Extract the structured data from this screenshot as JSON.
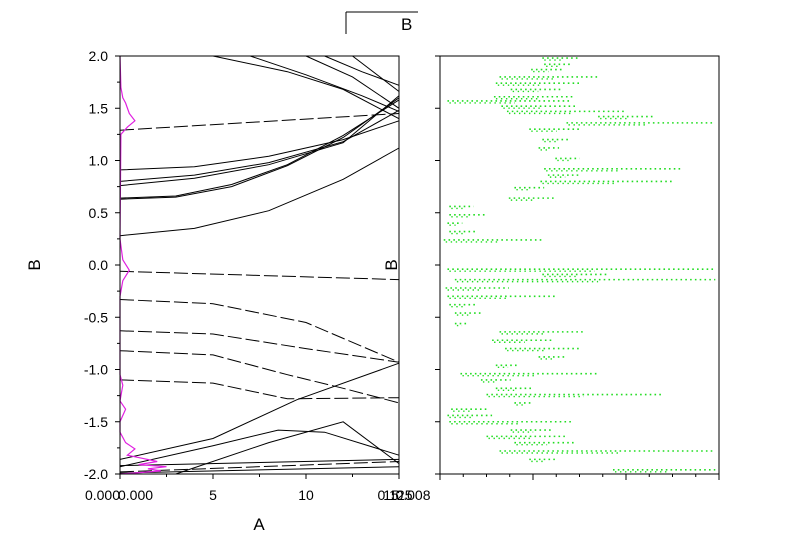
{
  "legend": {
    "label": "B"
  },
  "chart_data": [
    {
      "panel": "left",
      "type": "line",
      "title": "",
      "xlabel": "A",
      "ylabel": "B",
      "xlim": [
        0,
        15
      ],
      "ylim": [
        -2.0,
        2.0
      ],
      "x_ticks": [
        "0.000",
        "5",
        "10",
        "15"
      ],
      "x_overlay_ticks": [
        "0.000",
        "0.125",
        "0.008"
      ],
      "y_ticks": [
        "2.0",
        "1.5",
        "1.0",
        "0.5",
        "0.0",
        "-0.5",
        "-1.0",
        "-1.5",
        "-2.0"
      ],
      "y_tick_values": [
        2.0,
        1.5,
        1.0,
        0.5,
        0.0,
        -0.5,
        -1.0,
        -1.5,
        -2.0
      ],
      "line_color": "#000000",
      "series": [
        {
          "style": "dash",
          "points": [
            [
              0,
              1.29
            ],
            [
              15,
              1.45
            ]
          ]
        },
        {
          "style": "solid",
          "points": [
            [
              0,
              0.91
            ],
            [
              4,
              0.94
            ],
            [
              8,
              1.04
            ],
            [
              12,
              1.2
            ],
            [
              15,
              1.38
            ]
          ]
        },
        {
          "style": "solid",
          "points": [
            [
              0,
              0.8
            ],
            [
              4,
              0.86
            ],
            [
              8,
              0.98
            ],
            [
              12,
              1.18
            ],
            [
              15,
              1.48
            ]
          ]
        },
        {
          "style": "solid",
          "points": [
            [
              0,
              0.76
            ],
            [
              4,
              0.83
            ],
            [
              8,
              0.96
            ],
            [
              12,
              1.17
            ],
            [
              15,
              1.62
            ]
          ]
        },
        {
          "style": "solid",
          "points": [
            [
              0,
              0.64
            ],
            [
              3,
              0.66
            ],
            [
              6,
              0.77
            ],
            [
              9,
              0.96
            ],
            [
              12,
              1.24
            ],
            [
              15,
              1.58
            ]
          ]
        },
        {
          "style": "solid",
          "points": [
            [
              0,
              0.63
            ],
            [
              3,
              0.65
            ],
            [
              6,
              0.75
            ],
            [
              9,
              0.95
            ],
            [
              12,
              1.22
            ],
            [
              15,
              1.6
            ]
          ]
        },
        {
          "style": "solid",
          "points": [
            [
              0,
              0.28
            ],
            [
              4,
              0.35
            ],
            [
              8,
              0.52
            ],
            [
              12,
              0.82
            ],
            [
              15,
              1.12
            ]
          ]
        },
        {
          "style": "solid",
          "points": [
            [
              5,
              2.0
            ],
            [
              9,
              1.85
            ],
            [
              12,
              1.68
            ],
            [
              15,
              1.4
            ]
          ]
        },
        {
          "style": "solid",
          "points": [
            [
              7,
              2.0
            ],
            [
              10,
              1.82
            ],
            [
              13,
              1.62
            ],
            [
              15,
              1.47
            ]
          ]
        },
        {
          "style": "solid",
          "points": [
            [
              10,
              2.0
            ],
            [
              12.5,
              1.8
            ],
            [
              15,
              1.5
            ]
          ]
        },
        {
          "style": "solid",
          "points": [
            [
              11,
              2.0
            ],
            [
              13,
              1.85
            ],
            [
              15,
              1.72
            ]
          ]
        },
        {
          "style": "solid",
          "points": [
            [
              12.5,
              2.0
            ],
            [
              15,
              1.66
            ]
          ]
        },
        {
          "style": "dash",
          "points": [
            [
              0,
              -0.06
            ],
            [
              15,
              -0.14
            ]
          ]
        },
        {
          "style": "dash",
          "points": [
            [
              0,
              -0.33
            ],
            [
              5,
              -0.37
            ],
            [
              10,
              -0.55
            ],
            [
              15,
              -0.93
            ]
          ]
        },
        {
          "style": "dash",
          "points": [
            [
              0,
              -0.63
            ],
            [
              5,
              -0.66
            ],
            [
              10,
              -0.8
            ],
            [
              15,
              -0.93
            ]
          ]
        },
        {
          "style": "dash",
          "points": [
            [
              0,
              -0.82
            ],
            [
              5,
              -0.86
            ],
            [
              9,
              -1.05
            ],
            [
              12,
              -1.18
            ],
            [
              15,
              -1.32
            ]
          ]
        },
        {
          "style": "dash",
          "points": [
            [
              0,
              -1.1
            ],
            [
              5,
              -1.13
            ],
            [
              9,
              -1.28
            ],
            [
              15,
              -1.27
            ]
          ]
        },
        {
          "style": "solid",
          "points": [
            [
              0,
              -1.86
            ],
            [
              5,
              -1.66
            ],
            [
              9.5,
              -1.29
            ],
            [
              15,
              -0.94
            ]
          ]
        },
        {
          "style": "solid",
          "points": [
            [
              0,
              -1.93
            ],
            [
              5,
              -1.73
            ],
            [
              8.5,
              -1.58
            ],
            [
              11,
              -1.6
            ],
            [
              15,
              -1.82
            ]
          ]
        },
        {
          "style": "solid",
          "points": [
            [
              3,
              -2.0
            ],
            [
              8,
              -1.7
            ],
            [
              12,
              -1.5
            ],
            [
              15,
              -1.9
            ]
          ]
        },
        {
          "style": "solid",
          "points": [
            [
              0,
              -1.92
            ],
            [
              15,
              -1.86
            ]
          ]
        },
        {
          "style": "dash",
          "points": [
            [
              0,
              -1.98
            ],
            [
              15,
              -1.88
            ]
          ]
        },
        {
          "style": "solid",
          "points": [
            [
              0,
              -1.99
            ],
            [
              15,
              -1.93
            ]
          ]
        }
      ],
      "dos_color": "#e020e0",
      "dos_curve": [
        [
          0,
          2.0
        ],
        [
          0.05,
          1.7
        ],
        [
          0.15,
          1.6
        ],
        [
          0.3,
          1.55
        ],
        [
          0.5,
          1.45
        ],
        [
          0.8,
          1.38
        ],
        [
          0.4,
          1.32
        ],
        [
          0.05,
          1.25
        ],
        [
          0,
          0.25
        ],
        [
          0.15,
          0.05
        ],
        [
          0.5,
          -0.05
        ],
        [
          0.15,
          -0.15
        ],
        [
          0,
          -0.3
        ],
        [
          0,
          -1.05
        ],
        [
          0.15,
          -1.15
        ],
        [
          0,
          -1.3
        ],
        [
          0.3,
          -1.38
        ],
        [
          0,
          -1.5
        ],
        [
          0,
          -1.6
        ],
        [
          0.3,
          -1.7
        ],
        [
          0.8,
          -1.76
        ],
        [
          0.4,
          -1.82
        ],
        [
          1.2,
          -1.85
        ],
        [
          2.0,
          -1.88
        ],
        [
          1.0,
          -1.91
        ],
        [
          2.5,
          -1.93
        ],
        [
          1.5,
          -1.95
        ],
        [
          2.2,
          -1.97
        ],
        [
          0.8,
          -1.99
        ],
        [
          0,
          -2.0
        ]
      ]
    },
    {
      "panel": "right",
      "type": "scatter",
      "ylabel": "B",
      "xlim": [
        0,
        1.5
      ],
      "ylim": [
        -2.0,
        2.0
      ],
      "x_minor_ticks": 12,
      "x_major_ticks": 3,
      "color": "#22dd22",
      "rows": [
        {
          "y": 1.98,
          "x0": 0.55,
          "x1": 0.74
        },
        {
          "y": 1.92,
          "x0": 0.56,
          "x1": 0.7
        },
        {
          "y": 1.87,
          "x0": 0.49,
          "x1": 0.66
        },
        {
          "y": 1.8,
          "x0": 0.32,
          "x1": 0.85
        },
        {
          "y": 1.74,
          "x0": 0.3,
          "x1": 0.75
        },
        {
          "y": 1.68,
          "x0": 0.38,
          "x1": 0.65
        },
        {
          "y": 1.61,
          "x0": 0.29,
          "x1": 0.72
        },
        {
          "y": 1.57,
          "x0": 0.04,
          "x1": 0.7
        },
        {
          "y": 1.52,
          "x0": 0.33,
          "x1": 0.73
        },
        {
          "y": 1.47,
          "x0": 0.36,
          "x1": 1.0
        },
        {
          "y": 1.42,
          "x0": 0.85,
          "x1": 1.15
        },
        {
          "y": 1.36,
          "x0": 0.68,
          "x1": 1.48
        },
        {
          "y": 1.3,
          "x0": 0.48,
          "x1": 0.75
        },
        {
          "y": 1.2,
          "x0": 0.55,
          "x1": 0.7
        },
        {
          "y": 1.12,
          "x0": 0.53,
          "x1": 0.64
        },
        {
          "y": 1.02,
          "x0": 0.62,
          "x1": 0.75
        },
        {
          "y": 0.92,
          "x0": 0.56,
          "x1": 1.3
        },
        {
          "y": 0.86,
          "x0": 0.58,
          "x1": 0.75
        },
        {
          "y": 0.8,
          "x0": 0.54,
          "x1": 1.26
        },
        {
          "y": 0.74,
          "x0": 0.4,
          "x1": 0.56
        },
        {
          "y": 0.64,
          "x0": 0.37,
          "x1": 0.62
        },
        {
          "y": 0.56,
          "x0": 0.05,
          "x1": 0.18
        },
        {
          "y": 0.48,
          "x0": 0.05,
          "x1": 0.25
        },
        {
          "y": 0.4,
          "x0": 0.04,
          "x1": 0.12
        },
        {
          "y": 0.32,
          "x0": 0.05,
          "x1": 0.2
        },
        {
          "y": 0.24,
          "x0": 0.02,
          "x1": 0.55
        },
        {
          "y": -0.04,
          "x0": 0.04,
          "x1": 1.48
        },
        {
          "y": -0.09,
          "x0": 0.55,
          "x1": 0.9
        },
        {
          "y": -0.14,
          "x0": 0.08,
          "x1": 1.48
        },
        {
          "y": -0.22,
          "x0": 0.03,
          "x1": 0.37
        },
        {
          "y": -0.3,
          "x0": 0.04,
          "x1": 0.62
        },
        {
          "y": -0.38,
          "x0": 0.05,
          "x1": 0.2
        },
        {
          "y": -0.46,
          "x0": 0.08,
          "x1": 0.22
        },
        {
          "y": -0.56,
          "x0": 0.08,
          "x1": 0.15
        },
        {
          "y": -0.64,
          "x0": 0.32,
          "x1": 0.77
        },
        {
          "y": -0.72,
          "x0": 0.28,
          "x1": 0.6
        },
        {
          "y": -0.8,
          "x0": 0.35,
          "x1": 0.75
        },
        {
          "y": -0.88,
          "x0": 0.53,
          "x1": 0.68
        },
        {
          "y": -0.96,
          "x0": 0.3,
          "x1": 0.42
        },
        {
          "y": -1.04,
          "x0": 0.11,
          "x1": 0.85
        },
        {
          "y": -1.1,
          "x0": 0.22,
          "x1": 0.38
        },
        {
          "y": -1.18,
          "x0": 0.3,
          "x1": 0.5
        },
        {
          "y": -1.24,
          "x0": 0.25,
          "x1": 1.2
        },
        {
          "y": -1.32,
          "x0": 0.4,
          "x1": 0.5
        },
        {
          "y": -1.38,
          "x0": 0.06,
          "x1": 0.25
        },
        {
          "y": -1.44,
          "x0": 0.04,
          "x1": 0.28
        },
        {
          "y": -1.5,
          "x0": 0.05,
          "x1": 0.72
        },
        {
          "y": -1.58,
          "x0": 0.38,
          "x1": 0.6
        },
        {
          "y": -1.64,
          "x0": 0.25,
          "x1": 0.68
        },
        {
          "y": -1.7,
          "x0": 0.4,
          "x1": 0.72
        },
        {
          "y": -1.78,
          "x0": 0.32,
          "x1": 1.48
        },
        {
          "y": -1.86,
          "x0": 0.48,
          "x1": 0.62
        },
        {
          "y": -1.96,
          "x0": 0.93,
          "x1": 1.48
        }
      ]
    }
  ]
}
